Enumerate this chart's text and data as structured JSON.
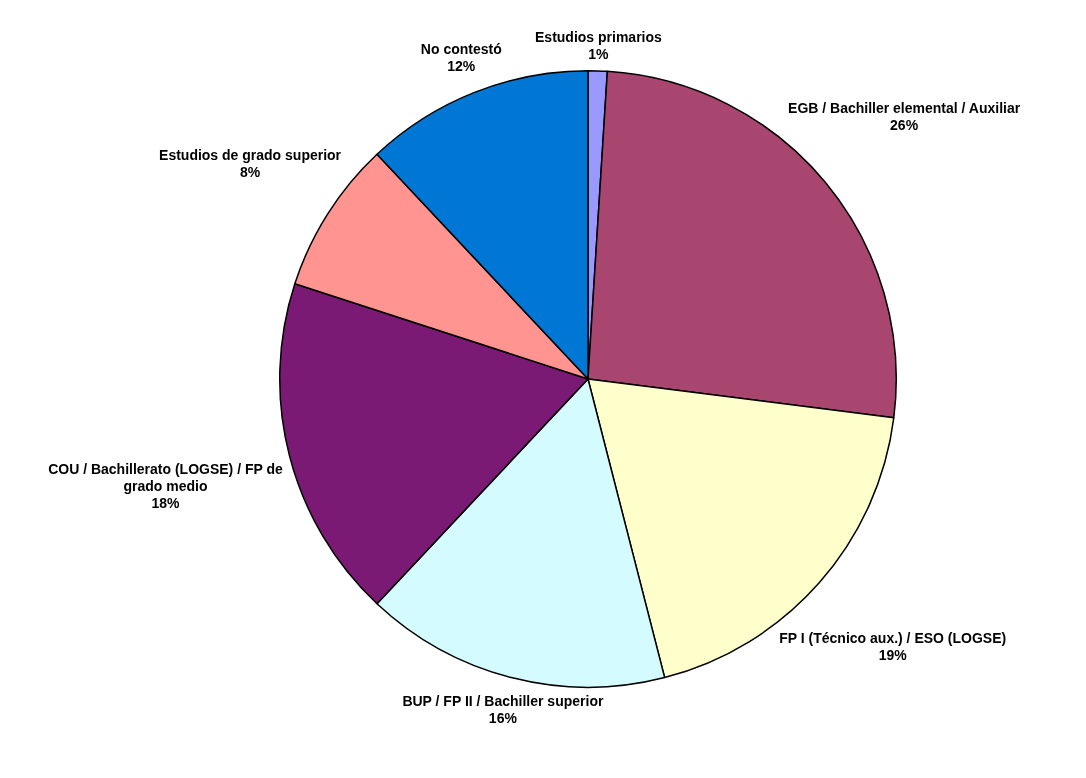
{
  "chart_data": {
    "type": "pie",
    "categories": [
      "Estudios primarios",
      "EGB / Bachiller elemental / Auxiliar",
      "FP I (Técnico aux.) / ESO (LOGSE)",
      "BUP / FP II / Bachiller superior",
      "COU / Bachillerato (LOGSE) / FP de grado medio",
      "Estudios de grado superior",
      "No contestó"
    ],
    "values": [
      1,
      26,
      19,
      16,
      18,
      8,
      12
    ],
    "colors": [
      "#9999ff",
      "#a8466f",
      "#ffffcc",
      "#d4fbff",
      "#7b1a74",
      "#ff9490",
      "#0077d4"
    ],
    "value_labels": [
      "1%",
      "26%",
      "19%",
      "16%",
      "18%",
      "8%",
      "12%"
    ],
    "legend": false
  }
}
